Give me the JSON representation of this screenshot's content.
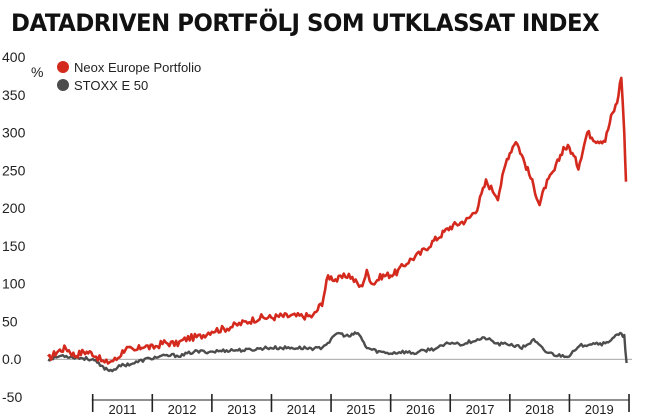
{
  "chart_data": {
    "type": "line",
    "title": "DATADRIVEN PORTFÖLJ SOM UTKLASSAT INDEX",
    "ylabel": "%",
    "ylim": [
      -50,
      400
    ],
    "yticks": [
      {
        "value": 400,
        "label": "400"
      },
      {
        "value": 350,
        "label": "350"
      },
      {
        "value": 300,
        "label": "300"
      },
      {
        "value": 250,
        "label": "250"
      },
      {
        "value": 200,
        "label": "200"
      },
      {
        "value": 150,
        "label": "150"
      },
      {
        "value": 100,
        "label": "100"
      },
      {
        "value": 50,
        "label": "50"
      },
      {
        "value": 0,
        "label": "0.0"
      },
      {
        "value": -50,
        "label": "-50"
      }
    ],
    "xlim": [
      2010.25,
      2020.05
    ],
    "xticks": [
      "2011",
      "2012",
      "2013",
      "2014",
      "2015",
      "2016",
      "2017",
      "2018",
      "2019"
    ],
    "grid": false,
    "legend_position": "top-left",
    "series": [
      {
        "name": "Neox Europe Portfolio",
        "color": "#d42a1e",
        "x": [
          2010.25,
          2010.4,
          2010.55,
          2010.7,
          2010.85,
          2011.0,
          2011.2,
          2011.4,
          2011.55,
          2011.7,
          2011.85,
          2012.0,
          2012.2,
          2012.4,
          2012.6,
          2012.8,
          2013.0,
          2013.2,
          2013.4,
          2013.6,
          2013.8,
          2014.0,
          2014.15,
          2014.3,
          2014.5,
          2014.7,
          2014.85,
          2014.95,
          2015.1,
          2015.3,
          2015.5,
          2015.6,
          2015.7,
          2015.85,
          2016.0,
          2016.1,
          2016.3,
          2016.5,
          2016.7,
          2016.85,
          2017.0,
          2017.15,
          2017.3,
          2017.45,
          2017.6,
          2017.8,
          2017.95,
          2018.1,
          2018.2,
          2018.35,
          2018.5,
          2018.6,
          2018.75,
          2018.9,
          2019.0,
          2019.15,
          2019.3,
          2019.45,
          2019.6,
          2019.7,
          2019.8,
          2019.87,
          2019.92,
          2019.95
        ],
        "values": [
          0,
          10,
          15,
          5,
          10,
          8,
          -5,
          0,
          15,
          10,
          18,
          15,
          22,
          20,
          28,
          30,
          38,
          40,
          45,
          50,
          55,
          55,
          57,
          57,
          57,
          57,
          75,
          110,
          105,
          112,
          95,
          115,
          100,
          110,
          112,
          115,
          130,
          140,
          155,
          165,
          175,
          180,
          185,
          200,
          235,
          215,
          265,
          290,
          270,
          240,
          205,
          230,
          250,
          280,
          280,
          255,
          300,
          290,
          290,
          320,
          340,
          375,
          300,
          235
        ]
      },
      {
        "name": "STOXX E 50",
        "color": "#4d4d4d",
        "x": [
          2010.25,
          2010.5,
          2010.75,
          2011.0,
          2011.15,
          2011.3,
          2011.5,
          2011.7,
          2011.9,
          2012.1,
          2012.3,
          2012.5,
          2012.7,
          2013.0,
          2013.3,
          2013.6,
          2013.9,
          2014.2,
          2014.5,
          2014.8,
          2015.0,
          2015.1,
          2015.3,
          2015.45,
          2015.6,
          2015.8,
          2016.0,
          2016.2,
          2016.4,
          2016.6,
          2016.8,
          2017.0,
          2017.2,
          2017.4,
          2017.6,
          2017.8,
          2018.0,
          2018.2,
          2018.4,
          2018.6,
          2018.8,
          2019.0,
          2019.2,
          2019.4,
          2019.6,
          2019.75,
          2019.85,
          2019.92,
          2019.96
        ],
        "values": [
          0,
          5,
          2,
          0,
          -10,
          -15,
          -8,
          -5,
          0,
          3,
          5,
          5,
          10,
          10,
          12,
          12,
          15,
          15,
          15,
          14,
          25,
          35,
          30,
          35,
          15,
          10,
          8,
          10,
          8,
          12,
          15,
          22,
          20,
          25,
          28,
          20,
          20,
          15,
          25,
          10,
          5,
          5,
          18,
          22,
          20,
          30,
          33,
          30,
          -5
        ]
      }
    ]
  }
}
